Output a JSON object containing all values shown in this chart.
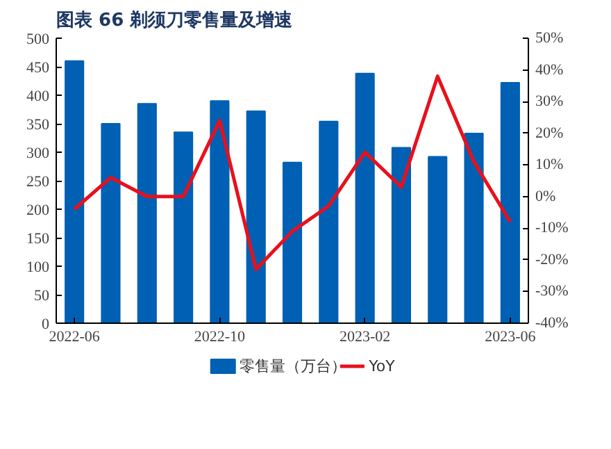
{
  "chart_data": {
    "type": "bar",
    "title": "图表 66   剃须刀零售量及增速",
    "categories": [
      "2022-06",
      null,
      null,
      null,
      "2022-10",
      null,
      null,
      null,
      "2023-02",
      null,
      null,
      null,
      "2023-06"
    ],
    "series": [
      {
        "name": "零售量（万台）",
        "color": "#0060b4",
        "values": [
          460,
          350,
          385,
          335,
          390,
          372,
          282,
          354,
          438,
          308,
          292,
          333,
          422
        ]
      },
      {
        "name": "YoY",
        "type": "line",
        "axis": "y2",
        "color": "#e8101c",
        "values": [
          -4,
          6,
          0,
          0,
          24,
          -23,
          -11,
          -3,
          14,
          3,
          38,
          11,
          -8
        ]
      }
    ],
    "ylim": [
      0,
      500
    ],
    "yticks": [
      0,
      50,
      100,
      150,
      200,
      250,
      300,
      350,
      400,
      450,
      500
    ],
    "y2lim": [
      -40,
      50
    ],
    "y2ticks": [
      {
        "value": -40,
        "label": "-40%"
      },
      {
        "value": -30,
        "label": "-30%"
      },
      {
        "value": -20,
        "label": "-20%"
      },
      {
        "value": -10,
        "label": "-10%"
      },
      {
        "value": 0,
        "label": "0%"
      },
      {
        "value": 10,
        "label": "10%"
      },
      {
        "value": 20,
        "label": "20%"
      },
      {
        "value": 30,
        "label": "30%"
      },
      {
        "value": 40,
        "label": "40%"
      },
      {
        "value": 50,
        "label": "50%"
      }
    ],
    "legend": "bottom",
    "grid": false
  }
}
